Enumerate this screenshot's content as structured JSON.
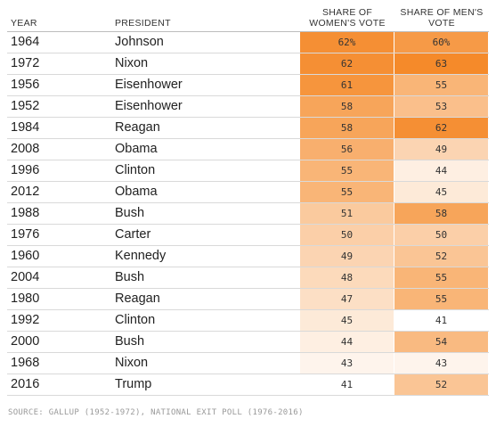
{
  "chart_data": {
    "type": "table",
    "columns": [
      "YEAR",
      "PRESIDENT",
      "SHARE OF WOMEN'S VOTE",
      "SHARE OF MEN'S VOTE"
    ],
    "rows": [
      {
        "year": "1964",
        "president": "Johnson",
        "women": 62,
        "men": 60,
        "women_label": "62%",
        "men_label": "60%"
      },
      {
        "year": "1972",
        "president": "Nixon",
        "women": 62,
        "men": 63,
        "women_label": "62",
        "men_label": "63"
      },
      {
        "year": "1956",
        "president": "Eisenhower",
        "women": 61,
        "men": 55,
        "women_label": "61",
        "men_label": "55"
      },
      {
        "year": "1952",
        "president": "Eisenhower",
        "women": 58,
        "men": 53,
        "women_label": "58",
        "men_label": "53"
      },
      {
        "year": "1984",
        "president": "Reagan",
        "women": 58,
        "men": 62,
        "women_label": "58",
        "men_label": "62"
      },
      {
        "year": "2008",
        "president": "Obama",
        "women": 56,
        "men": 49,
        "women_label": "56",
        "men_label": "49"
      },
      {
        "year": "1996",
        "president": "Clinton",
        "women": 55,
        "men": 44,
        "women_label": "55",
        "men_label": "44"
      },
      {
        "year": "2012",
        "president": "Obama",
        "women": 55,
        "men": 45,
        "women_label": "55",
        "men_label": "45"
      },
      {
        "year": "1988",
        "president": "Bush",
        "women": 51,
        "men": 58,
        "women_label": "51",
        "men_label": "58"
      },
      {
        "year": "1976",
        "president": "Carter",
        "women": 50,
        "men": 50,
        "women_label": "50",
        "men_label": "50"
      },
      {
        "year": "1960",
        "president": "Kennedy",
        "women": 49,
        "men": 52,
        "women_label": "49",
        "men_label": "52"
      },
      {
        "year": "2004",
        "president": "Bush",
        "women": 48,
        "men": 55,
        "women_label": "48",
        "men_label": "55"
      },
      {
        "year": "1980",
        "president": "Reagan",
        "women": 47,
        "men": 55,
        "women_label": "47",
        "men_label": "55"
      },
      {
        "year": "1992",
        "president": "Clinton",
        "women": 45,
        "men": 41,
        "women_label": "45",
        "men_label": "41"
      },
      {
        "year": "2000",
        "president": "Bush",
        "women": 44,
        "men": 54,
        "women_label": "44",
        "men_label": "54"
      },
      {
        "year": "1968",
        "president": "Nixon",
        "women": 43,
        "men": 43,
        "women_label": "43",
        "men_label": "43"
      },
      {
        "year": "2016",
        "president": "Trump",
        "women": 41,
        "men": 52,
        "women_label": "41",
        "men_label": "52"
      }
    ],
    "color_scale": {
      "min_value": 41,
      "max_value": 63,
      "low_color": "#ffffff",
      "high_color": "#f58a2a"
    }
  },
  "header": {
    "year": "YEAR",
    "president": "PRESIDENT",
    "women_line1": "SHARE OF",
    "women_line2": "WOMEN'S VOTE",
    "men_line1": "SHARE OF MEN'S",
    "men_line2": "VOTE"
  },
  "source": "SOURCE: GALLUP (1952-1972), NATIONAL EXIT POLL (1976-2016)"
}
